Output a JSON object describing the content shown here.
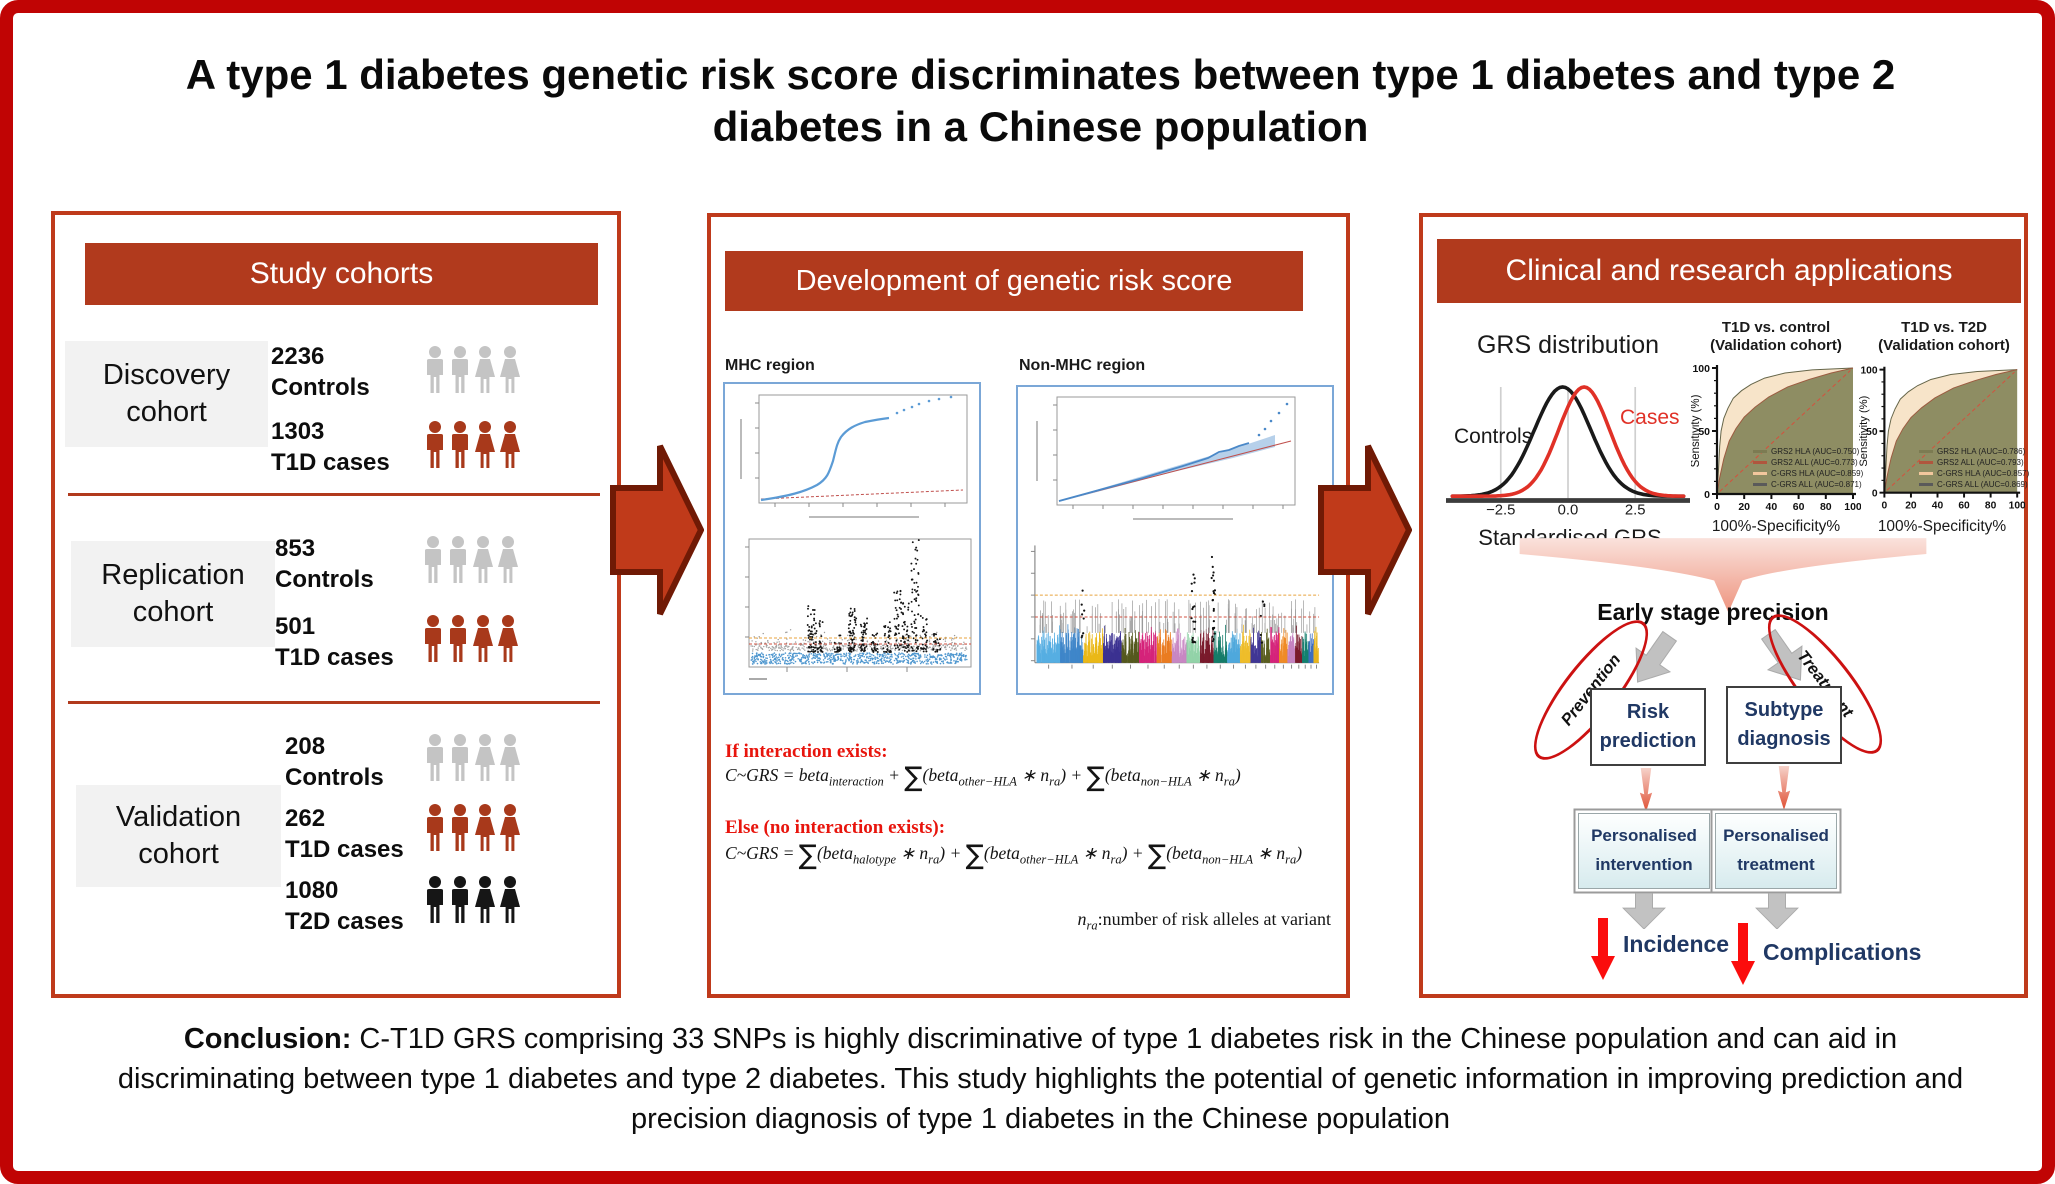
{
  "title": "A type 1 diabetes genetic risk score discriminates between type 1 diabetes and type 2 diabetes in a Chinese population",
  "people_colors": {
    "gray": "#c4c4c4",
    "red": "#a8391b",
    "black": "#161616"
  },
  "accent_colors": {
    "outer_border": "#c00404",
    "panel_border": "#bf3a1b",
    "header_bar": "#b13a1d"
  },
  "cohorts": {
    "header": "Study cohorts",
    "groups": [
      {
        "name": "Discovery\ncohort",
        "rows": [
          {
            "count": "2236",
            "label": "Controls",
            "variant": "gray"
          },
          {
            "count": "1303",
            "label": "T1D cases",
            "variant": "red"
          }
        ]
      },
      {
        "name": "Replication\ncohort",
        "rows": [
          {
            "count": "853",
            "label": "Controls",
            "variant": "gray"
          },
          {
            "count": "501",
            "label": "T1D cases",
            "variant": "red"
          }
        ]
      },
      {
        "name": "Validation\ncohort",
        "rows": [
          {
            "count": "208",
            "label": "Controls",
            "variant": "gray"
          },
          {
            "count": "262",
            "label": "T1D cases",
            "variant": "red"
          },
          {
            "count": "1080",
            "label": "T2D cases",
            "variant": "black"
          }
        ]
      }
    ]
  },
  "development": {
    "header": "Development of genetic risk score",
    "mhc_label": "MHC region",
    "non_mhc_label": "Non-MHC region",
    "formulas": [
      {
        "label": "If interaction exists:",
        "parts": [
          {
            "t": "C~GRS = beta"
          },
          {
            "s": "interaction"
          },
          {
            "t": " + "
          },
          {
            "S": "∑"
          },
          {
            "t": "(beta"
          },
          {
            "s": "other−HLA"
          },
          {
            "t": " ∗ n"
          },
          {
            "s": "ra"
          },
          {
            "t": ") + "
          },
          {
            "S": "∑"
          },
          {
            "t": "(beta"
          },
          {
            "s": "non−HLA"
          },
          {
            "t": " ∗ n"
          },
          {
            "s": "ra"
          },
          {
            "t": ")"
          }
        ]
      },
      {
        "label": "Else (no interaction exists):",
        "parts": [
          {
            "t": "C~GRS = "
          },
          {
            "S": "∑"
          },
          {
            "t": "(beta"
          },
          {
            "s": "halotype"
          },
          {
            "t": " ∗ n"
          },
          {
            "s": "ra"
          },
          {
            "t": ") + "
          },
          {
            "S": "∑"
          },
          {
            "t": "(beta"
          },
          {
            "s": "other−HLA"
          },
          {
            "t": " ∗ n"
          },
          {
            "s": "ra"
          },
          {
            "t": ") + "
          },
          {
            "S": "∑"
          },
          {
            "t": "(beta"
          },
          {
            "s": "non−HLA"
          },
          {
            "t": " ∗ n"
          },
          {
            "s": "ra"
          },
          {
            "t": ")"
          }
        ]
      }
    ],
    "footnote_parts": [
      {
        "t": "n"
      },
      {
        "s": "ra"
      },
      {
        "r": ":number of risk alleles at variant"
      }
    ]
  },
  "applications": {
    "header": "Clinical and research applications",
    "grs": {
      "title": "GRS distribution",
      "controls_label": "Controls",
      "cases_label": "Cases",
      "xlabel": "Standardised GRS"
    },
    "roc1": {
      "title_line1": "T1D vs. control",
      "title_line2": "(Validation cohort)",
      "ylabel": "Sensitivity (%)",
      "xlabel": "100%-Specificity%",
      "legend": [
        {
          "label": "GRS2 HLA (AUC=0.750)",
          "color": "#7c7b52"
        },
        {
          "label": "GRS2 ALL (AUC=0.773)",
          "color": "#b0563e"
        },
        {
          "label": "C-GRS HLA (AUC=0.859)",
          "color": "#f2c79d"
        },
        {
          "label": "C-GRS ALL (AUC=0.871)",
          "color": "#5a5a5a"
        }
      ]
    },
    "roc2": {
      "title_line1": "T1D vs. T2D",
      "title_line2": "(Validation cohort)",
      "ylabel": "Sensitivity (%)",
      "xlabel": "100%-Specificity%",
      "legend": [
        {
          "label": "GRS2 HLA (AUC=0.786)",
          "color": "#7c7b52"
        },
        {
          "label": "GRS2 ALL (AUC=0.793)",
          "color": "#b0563e"
        },
        {
          "label": "C-GRS HLA (AUC=0.857)",
          "color": "#f2c79d"
        },
        {
          "label": "C-GRS ALL (AUC=0.869)",
          "color": "#5a5a5a"
        }
      ]
    },
    "flow": {
      "heading": "Early stage precision",
      "prevention": "Prevention",
      "treatment": "Treatment",
      "risk_box": "Risk\nprediction",
      "subtype_box": "Subtype\ndiagnosis",
      "intervention_box": "Personalised\nintervention",
      "treatment_box": "Personalised\ntreatment",
      "incidence": "Incidence",
      "complications": "Complications"
    }
  },
  "conclusion": {
    "bold": "Conclusion:",
    "text": " C-T1D GRS comprising 33 SNPs is highly discriminative of type 1 diabetes risk in the Chinese population and can aid in discriminating between type 1 diabetes and type 2 diabetes. This study highlights the potential of genetic information in improving prediction and precision diagnosis of type 1 diabetes in the Chinese population"
  },
  "chart_data": [
    {
      "type": "line",
      "name": "grs_distribution",
      "title": "GRS distribution",
      "xlabel": "Standardised GRS",
      "series": [
        {
          "name": "Controls",
          "mean": -0.2,
          "sd": 1.05,
          "color": "#1a1a1a"
        },
        {
          "name": "Cases",
          "mean": 0.6,
          "sd": 0.95,
          "color": "#e03127"
        }
      ],
      "xticks": [
        "−2.5",
        "0.0",
        "2.5"
      ],
      "xtick_values": [
        -2.5,
        0,
        2.5
      ],
      "grid": "vertical"
    },
    {
      "type": "line",
      "name": "roc_t1d_vs_control",
      "title": "T1D vs. control (Validation cohort)",
      "xlabel": "100%-Specificity%",
      "ylabel": "Sensitivity (%)",
      "xticks": [
        0,
        20,
        40,
        60,
        80,
        100
      ],
      "yticks": [
        0,
        50,
        100
      ],
      "series": [
        {
          "name": "GRS2 HLA",
          "auc": 0.75
        },
        {
          "name": "GRS2 ALL",
          "auc": 0.773
        },
        {
          "name": "C-GRS HLA",
          "auc": 0.859
        },
        {
          "name": "C-GRS ALL",
          "auc": 0.871
        }
      ]
    },
    {
      "type": "line",
      "name": "roc_t1d_vs_t2d",
      "title": "T1D vs. T2D (Validation cohort)",
      "xlabel": "100%-Specificity%",
      "ylabel": "Sensitivity (%)",
      "xticks": [
        0,
        20,
        40,
        60,
        80,
        100
      ],
      "yticks": [
        0,
        50,
        100
      ],
      "series": [
        {
          "name": "GRS2 HLA",
          "auc": 0.786
        },
        {
          "name": "GRS2 ALL",
          "auc": 0.793
        },
        {
          "name": "C-GRS HLA",
          "auc": 0.857
        },
        {
          "name": "C-GRS ALL",
          "auc": 0.869
        }
      ]
    }
  ]
}
